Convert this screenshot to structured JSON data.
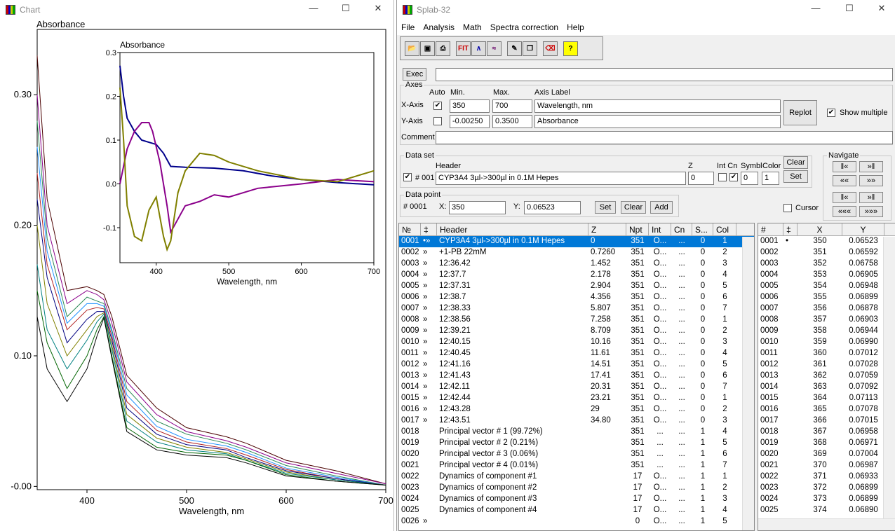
{
  "chart_window": {
    "title": "Chart",
    "controls": {
      "minimize": "—",
      "maximize": "☐",
      "close": "✕"
    }
  },
  "chart_data": [
    {
      "type": "line",
      "ylabel": "Absorbance",
      "xlabel": "Wavelength, nm",
      "xlim": [
        350,
        700
      ],
      "ylim": [
        -0.0025,
        0.35
      ],
      "xticks": [
        "400",
        "500",
        "600",
        "700"
      ],
      "yticks": [
        "0.30",
        "0.20",
        "0.10",
        "-0.00"
      ],
      "series": [
        {
          "color": "#4a0000",
          "x": [
            350,
            360,
            380,
            400,
            410,
            417,
            425,
            440,
            470,
            500,
            540,
            560,
            600,
            650,
            700
          ],
          "y": [
            0.33,
            0.22,
            0.15,
            0.153,
            0.15,
            0.147,
            0.13,
            0.085,
            0.06,
            0.045,
            0.038,
            0.033,
            0.02,
            0.012,
            0.002
          ]
        },
        {
          "color": "#8b008b",
          "x": [
            350,
            360,
            380,
            400,
            410,
            417,
            425,
            440,
            470,
            500,
            540,
            560,
            600,
            650,
            700
          ],
          "y": [
            0.3,
            0.2,
            0.14,
            0.15,
            0.147,
            0.143,
            0.125,
            0.08,
            0.055,
            0.042,
            0.035,
            0.03,
            0.018,
            0.01,
            0.002
          ]
        },
        {
          "color": "#2e8b57",
          "x": [
            350,
            360,
            380,
            400,
            410,
            417,
            425,
            440,
            470,
            500,
            540,
            560,
            600,
            650,
            700
          ],
          "y": [
            0.28,
            0.19,
            0.13,
            0.145,
            0.142,
            0.14,
            0.12,
            0.075,
            0.05,
            0.04,
            0.033,
            0.028,
            0.016,
            0.008,
            0.001
          ]
        },
        {
          "color": "#1e90ff",
          "x": [
            350,
            360,
            380,
            400,
            410,
            417,
            425,
            440,
            470,
            500,
            540,
            560,
            600,
            650,
            700
          ],
          "y": [
            0.26,
            0.18,
            0.125,
            0.14,
            0.14,
            0.138,
            0.118,
            0.07,
            0.046,
            0.036,
            0.031,
            0.026,
            0.014,
            0.007,
            0.001
          ]
        },
        {
          "color": "#b22222",
          "x": [
            350,
            360,
            380,
            400,
            410,
            417,
            425,
            440,
            470,
            500,
            540,
            560,
            600,
            650,
            700
          ],
          "y": [
            0.24,
            0.17,
            0.12,
            0.135,
            0.137,
            0.136,
            0.115,
            0.065,
            0.043,
            0.034,
            0.029,
            0.024,
            0.013,
            0.006,
            0.001
          ]
        },
        {
          "color": "#000080",
          "x": [
            350,
            360,
            380,
            400,
            410,
            417,
            425,
            440,
            470,
            500,
            540,
            560,
            600,
            650,
            700
          ],
          "y": [
            0.22,
            0.16,
            0.11,
            0.128,
            0.134,
            0.134,
            0.112,
            0.06,
            0.04,
            0.032,
            0.028,
            0.022,
            0.012,
            0.006,
            0.001
          ]
        },
        {
          "color": "#808000",
          "x": [
            350,
            360,
            380,
            400,
            410,
            417,
            425,
            440,
            470,
            500,
            540,
            560,
            600,
            650,
            700
          ],
          "y": [
            0.2,
            0.14,
            0.1,
            0.12,
            0.13,
            0.133,
            0.108,
            0.055,
            0.037,
            0.03,
            0.026,
            0.021,
            0.011,
            0.005,
            0.001
          ]
        },
        {
          "color": "#008080",
          "x": [
            350,
            360,
            380,
            400,
            410,
            417,
            425,
            440,
            470,
            500,
            540,
            560,
            600,
            650,
            700
          ],
          "y": [
            0.17,
            0.12,
            0.09,
            0.112,
            0.126,
            0.132,
            0.105,
            0.05,
            0.034,
            0.028,
            0.025,
            0.02,
            0.01,
            0.005,
            0.001
          ]
        },
        {
          "color": "#006400",
          "x": [
            350,
            360,
            380,
            400,
            410,
            417,
            425,
            440,
            470,
            500,
            540,
            560,
            600,
            650,
            700
          ],
          "y": [
            0.15,
            0.11,
            0.075,
            0.1,
            0.12,
            0.13,
            0.1,
            0.045,
            0.03,
            0.026,
            0.024,
            0.02,
            0.009,
            0.004,
            0.001
          ]
        },
        {
          "color": "#000000",
          "x": [
            350,
            360,
            380,
            400,
            410,
            417,
            425,
            440,
            470,
            500,
            540,
            560,
            600,
            650,
            700
          ],
          "y": [
            0.13,
            0.09,
            0.065,
            0.09,
            0.115,
            0.129,
            0.098,
            0.042,
            0.028,
            0.024,
            0.022,
            0.018,
            0.008,
            0.004,
            0.001
          ]
        }
      ]
    },
    {
      "type": "line",
      "title": "Absorbance",
      "xlabel": "Wavelength, nm",
      "xlim": [
        350,
        700
      ],
      "ylim": [
        -0.18,
        0.3
      ],
      "xticks": [
        "400",
        "500",
        "600",
        "700"
      ],
      "yticks": [
        "0.3",
        "0.2",
        "0.1",
        "0.0",
        "-0.1"
      ],
      "series": [
        {
          "color": "#00008b",
          "x": [
            350,
            355,
            360,
            370,
            380,
            400,
            410,
            420,
            440,
            480,
            520,
            560,
            600,
            650,
            700
          ],
          "y": [
            0.27,
            0.2,
            0.15,
            0.12,
            0.1,
            0.09,
            0.07,
            0.04,
            0.038,
            0.036,
            0.03,
            0.018,
            0.01,
            0.003,
            -0.002
          ]
        },
        {
          "color": "#8b008b",
          "x": [
            350,
            360,
            370,
            380,
            390,
            395,
            405,
            415,
            420,
            440,
            460,
            480,
            500,
            540,
            600,
            650,
            700
          ],
          "y": [
            0.0,
            0.08,
            0.12,
            0.14,
            0.14,
            0.12,
            0.05,
            -0.05,
            -0.11,
            -0.05,
            -0.04,
            -0.025,
            -0.03,
            -0.01,
            0.0,
            0.01,
            0.005
          ]
        },
        {
          "color": "#808000",
          "x": [
            350,
            355,
            360,
            370,
            380,
            390,
            400,
            410,
            415,
            420,
            430,
            440,
            460,
            480,
            500,
            540,
            600,
            650,
            700
          ],
          "y": [
            0.22,
            0.1,
            -0.05,
            -0.12,
            -0.13,
            -0.06,
            -0.03,
            -0.12,
            -0.15,
            -0.13,
            -0.02,
            0.03,
            0.07,
            0.065,
            0.05,
            0.03,
            0.01,
            0.005,
            0.03
          ]
        }
      ]
    }
  ],
  "splab": {
    "title": "Splab-32",
    "menu": [
      "File",
      "Analysis",
      "Math",
      "Spectra correction",
      "Help"
    ],
    "toolbar": [
      "open-icon",
      "save-icon",
      "print-icon",
      "fit-icon",
      "spectrum-icon",
      "spectra-icon",
      "brush-icon",
      "copy-icon",
      "eraser-icon",
      "help-icon"
    ],
    "toolbar_labels": {
      "fit": "FIT",
      "help": "?"
    },
    "exec_label": "Exec",
    "axes": {
      "group_label": "Axes",
      "auto": "Auto",
      "min": "Min.",
      "max": "Max.",
      "axis_label": "Axis Label",
      "x_label": "X-Axis",
      "x_min": "350",
      "x_max": "700",
      "x_axis_label": "Wavelength, nm",
      "y_label": "Y-Axis",
      "y_min": "-0.00250",
      "y_max": "0.3500",
      "y_axis_label": "Absorbance",
      "replot": "Replot",
      "show_multiple": "Show multiple"
    },
    "comment_label": "Comment",
    "dataset": {
      "group_label": "Data set",
      "header_label": "Header",
      "num": "# 001",
      "header_value": "CYP3A4 3µl->300µl in 0.1M Hepes",
      "z_label": "Z",
      "z_value": "0",
      "int_cn": "Int Cn",
      "symbl": "Symbl",
      "color": "Color",
      "symbl_value": "0",
      "color_value": "1",
      "clear": "Clear",
      "set": "Set"
    },
    "navigate": {
      "label": "Navigate",
      "b1": "‖«",
      "b2": "»‖",
      "b3": "««",
      "b4": "»»",
      "b5": "‖«",
      "b6": "»‖",
      "b7": "«««",
      "b8": "»»»"
    },
    "datapoint": {
      "group_label": "Data point",
      "num": "# 0001",
      "x_label": "X:",
      "x_value": "350",
      "y_label": "Y:",
      "y_value": "0.06523",
      "set": "Set",
      "clear": "Clear",
      "add": "Add",
      "cursor": "Cursor"
    },
    "list_headers": [
      "№",
      "‡",
      "Header",
      "Z",
      "Npt",
      "Int",
      "Cn",
      "S...",
      "Col"
    ],
    "rows": [
      [
        "0001",
        "•»",
        "CYP3A4 3µl->300µl in 0.1M Hepes",
        "0",
        "351",
        "O...",
        "...",
        "0",
        "1"
      ],
      [
        "0002",
        "»",
        "+1-PB 22mM",
        "0.7260",
        "351",
        "O...",
        "...",
        "0",
        "2"
      ],
      [
        "0003",
        "»",
        "12:36.42",
        "1.452",
        "351",
        "O...",
        "...",
        "0",
        "3"
      ],
      [
        "0004",
        "»",
        "12:37.7",
        "2.178",
        "351",
        "O...",
        "...",
        "0",
        "4"
      ],
      [
        "0005",
        "»",
        "12:37.31",
        "2.904",
        "351",
        "O...",
        "...",
        "0",
        "5"
      ],
      [
        "0006",
        "»",
        "12:38.7",
        "4.356",
        "351",
        "O...",
        "...",
        "0",
        "6"
      ],
      [
        "0007",
        "»",
        "12:38.33",
        "5.807",
        "351",
        "O...",
        "...",
        "0",
        "7"
      ],
      [
        "0008",
        "»",
        "12:38.56",
        "7.258",
        "351",
        "O...",
        "...",
        "0",
        "1"
      ],
      [
        "0009",
        "»",
        "12:39.21",
        "8.709",
        "351",
        "O...",
        "...",
        "0",
        "2"
      ],
      [
        "0010",
        "»",
        "12:40.15",
        "10.16",
        "351",
        "O...",
        "...",
        "0",
        "3"
      ],
      [
        "0011",
        "»",
        "12:40.45",
        "11.61",
        "351",
        "O...",
        "...",
        "0",
        "4"
      ],
      [
        "0012",
        "»",
        "12:41.16",
        "14.51",
        "351",
        "O...",
        "...",
        "0",
        "5"
      ],
      [
        "0013",
        "»",
        "12:41.43",
        "17.41",
        "351",
        "O...",
        "...",
        "0",
        "6"
      ],
      [
        "0014",
        "»",
        "12:42.11",
        "20.31",
        "351",
        "O...",
        "...",
        "0",
        "7"
      ],
      [
        "0015",
        "»",
        "12:42.44",
        "23.21",
        "351",
        "O...",
        "...",
        "0",
        "1"
      ],
      [
        "0016",
        "»",
        "12:43.28",
        "29",
        "351",
        "O...",
        "...",
        "0",
        "2"
      ],
      [
        "0017",
        "»",
        "12:43.51",
        "34.80",
        "351",
        "O...",
        "...",
        "0",
        "3"
      ],
      [
        "0018",
        "",
        "Principal vector # 1 (99.72%)",
        "",
        "351",
        "...",
        "...",
        "1",
        "4"
      ],
      [
        "0019",
        "",
        "Principal vector # 2 (0.21%)",
        "",
        "351",
        "...",
        "...",
        "1",
        "5"
      ],
      [
        "0020",
        "",
        "Principal vector # 3 (0.06%)",
        "",
        "351",
        "...",
        "...",
        "1",
        "6"
      ],
      [
        "0021",
        "",
        "Principal vector # 4 (0.01%)",
        "",
        "351",
        "...",
        "...",
        "1",
        "7"
      ],
      [
        "0022",
        "",
        "Dynamics of component #1",
        "",
        "17",
        "O...",
        "...",
        "1",
        "1"
      ],
      [
        "0023",
        "",
        "Dynamics of component #2",
        "",
        "17",
        "O...",
        "...",
        "1",
        "2"
      ],
      [
        "0024",
        "",
        "Dynamics of component #3",
        "",
        "17",
        "O...",
        "...",
        "1",
        "3"
      ],
      [
        "0025",
        "",
        "Dynamics of component #4",
        "",
        "17",
        "O...",
        "...",
        "1",
        "4"
      ],
      [
        "0026",
        "»",
        "",
        "",
        "0",
        "O...",
        "...",
        "1",
        "5"
      ]
    ],
    "point_headers": [
      "#",
      "‡",
      "X",
      "Y"
    ],
    "points": [
      [
        "0001",
        "•",
        "350",
        "0.06523"
      ],
      [
        "0002",
        "",
        "351",
        "0.06592"
      ],
      [
        "0003",
        "",
        "352",
        "0.06758"
      ],
      [
        "0004",
        "",
        "353",
        "0.06905"
      ],
      [
        "0005",
        "",
        "354",
        "0.06948"
      ],
      [
        "0006",
        "",
        "355",
        "0.06899"
      ],
      [
        "0007",
        "",
        "356",
        "0.06878"
      ],
      [
        "0008",
        "",
        "357",
        "0.06903"
      ],
      [
        "0009",
        "",
        "358",
        "0.06944"
      ],
      [
        "0010",
        "",
        "359",
        "0.06990"
      ],
      [
        "0011",
        "",
        "360",
        "0.07012"
      ],
      [
        "0012",
        "",
        "361",
        "0.07028"
      ],
      [
        "0013",
        "",
        "362",
        "0.07059"
      ],
      [
        "0014",
        "",
        "363",
        "0.07092"
      ],
      [
        "0015",
        "",
        "364",
        "0.07113"
      ],
      [
        "0016",
        "",
        "365",
        "0.07078"
      ],
      [
        "0017",
        "",
        "366",
        "0.07015"
      ],
      [
        "0018",
        "",
        "367",
        "0.06958"
      ],
      [
        "0019",
        "",
        "368",
        "0.06971"
      ],
      [
        "0020",
        "",
        "369",
        "0.07004"
      ],
      [
        "0021",
        "",
        "370",
        "0.06987"
      ],
      [
        "0022",
        "",
        "371",
        "0.06933"
      ],
      [
        "0023",
        "",
        "372",
        "0.06899"
      ],
      [
        "0024",
        "",
        "373",
        "0.06899"
      ],
      [
        "0025",
        "",
        "374",
        "0.06890"
      ]
    ]
  }
}
